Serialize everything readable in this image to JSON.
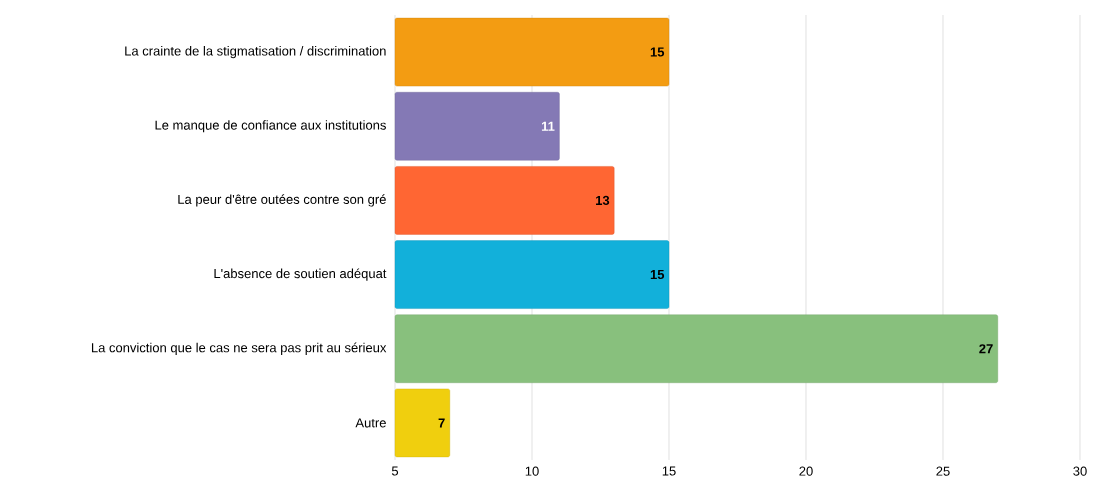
{
  "chart_data": {
    "type": "bar",
    "orientation": "horizontal",
    "categories": [
      "La crainte de la stigmatisation / discrimination",
      "Le manque de confiance aux institutions",
      "La peur d'être outées contre son gré",
      "L'absence de soutien adéquat",
      "La conviction que le cas ne sera pas prit au sérieux",
      "Autre"
    ],
    "values": [
      15,
      11,
      13,
      15,
      27,
      7
    ],
    "colors": [
      "#f39c12",
      "#8479b5",
      "#ff6633",
      "#12b0da",
      "#88c07d",
      "#f0cf0e"
    ],
    "xlim": [
      5,
      30
    ],
    "xticks": [
      5,
      10,
      15,
      20,
      25,
      30
    ],
    "grid": "x",
    "data_labels": true
  }
}
